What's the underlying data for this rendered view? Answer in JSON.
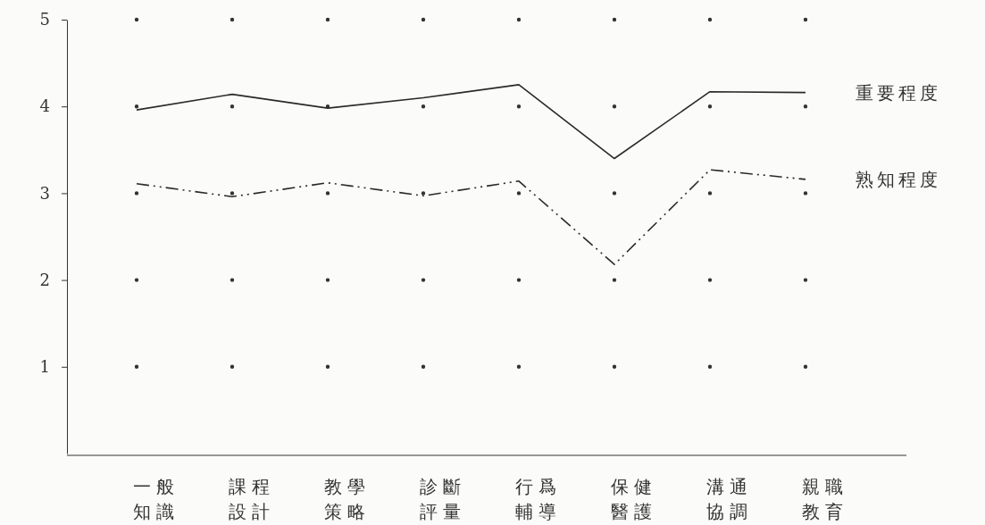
{
  "chart_data": {
    "type": "line",
    "categories": [
      "一般知識",
      "課程設計",
      "教學策略",
      "診斷評量",
      "行爲輔導",
      "保健醫護",
      "溝通協調",
      "親職教育"
    ],
    "series": [
      {
        "name": "重要程度",
        "color": "#2a2a2a",
        "line_style": "solid",
        "values": [
          3.96,
          4.14,
          3.98,
          4.1,
          4.25,
          3.4,
          4.17,
          4.16
        ]
      },
      {
        "name": "熟知程度",
        "color": "#2a2a2a",
        "line_style": "dashed",
        "values": [
          3.11,
          2.96,
          3.12,
          2.97,
          3.14,
          2.18,
          3.27,
          3.16
        ]
      }
    ],
    "ylim": [
      0,
      5
    ],
    "yticks": [
      1,
      2,
      3,
      4,
      5
    ],
    "grid": true,
    "legend": false,
    "marker": "none"
  }
}
